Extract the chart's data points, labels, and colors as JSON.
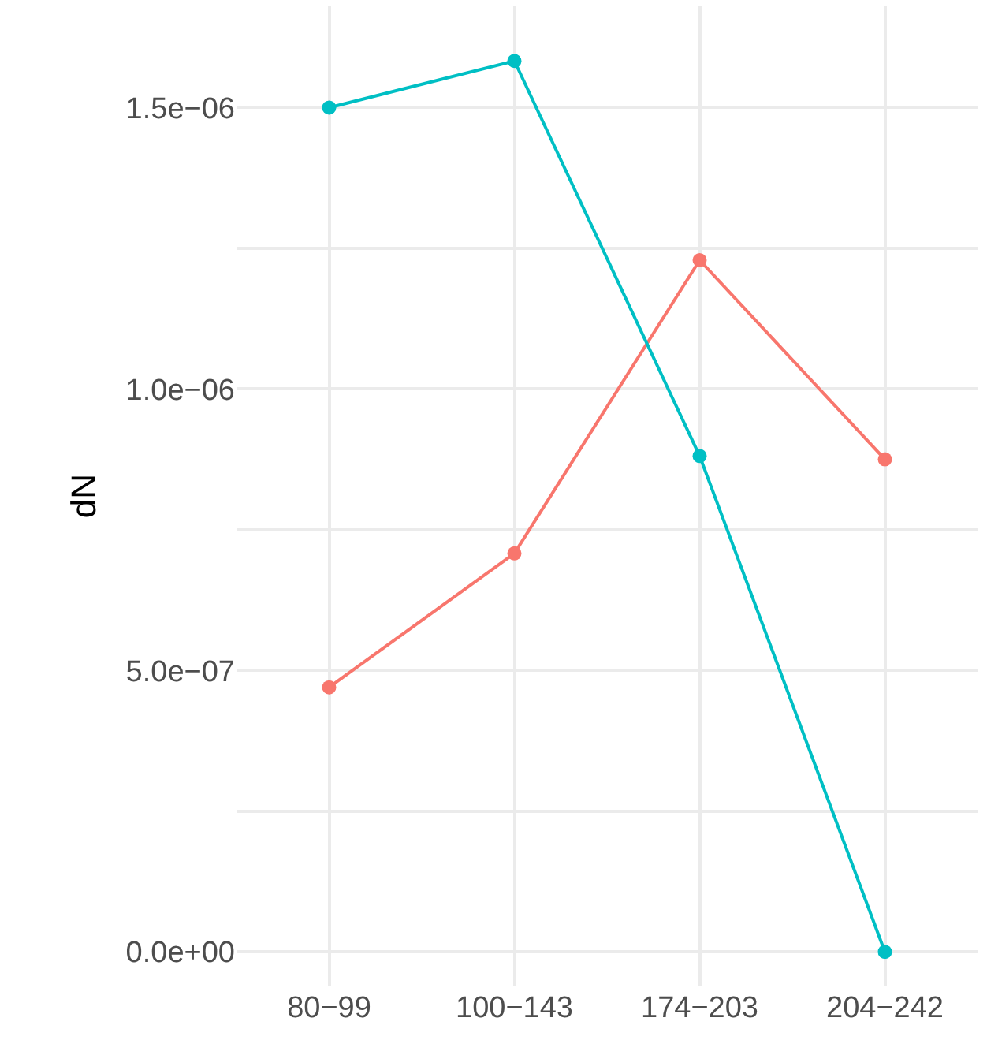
{
  "chart_data": {
    "type": "line",
    "ylabel": "dN",
    "categories": [
      "80−99",
      "100−143",
      "174−203",
      "204−242"
    ],
    "series": [
      {
        "color": "#f8766d",
        "values": [
          4.7e-07,
          7.08e-07,
          1.229e-06,
          8.75e-07
        ]
      },
      {
        "color": "#00bfc4",
        "values": [
          1.5e-06,
          1.583e-06,
          8.81e-07,
          0
        ]
      }
    ],
    "ylim": [
      -6e-08,
      1.68e-06
    ],
    "yticks": [
      {
        "value": 0,
        "label": "0.0e+00"
      },
      {
        "value": 2.5e-07,
        "label": null
      },
      {
        "value": 5e-07,
        "label": "5.0e−07"
      },
      {
        "value": 7.5e-07,
        "label": null
      },
      {
        "value": 1e-06,
        "label": "1.0e−06"
      },
      {
        "value": 1.25e-06,
        "label": null
      },
      {
        "value": 1.5e-06,
        "label": "1.5e−06"
      }
    ],
    "grid": true,
    "marker": "circle",
    "line_style": "solid"
  }
}
